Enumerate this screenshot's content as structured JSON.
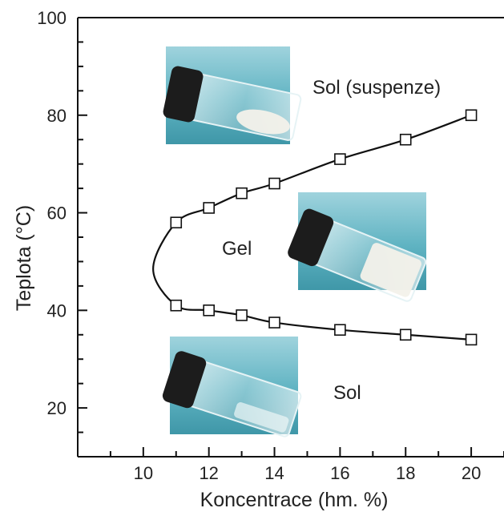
{
  "chart_data": {
    "type": "line",
    "xlabel": "Koncentrace (hm. %)",
    "ylabel": "Teplota (°C)",
    "xlim": [
      8,
      21
    ],
    "ylim": [
      10,
      100
    ],
    "x_ticks": [
      10,
      12,
      14,
      16,
      18,
      20
    ],
    "y_ticks": [
      20,
      40,
      60,
      80,
      100
    ],
    "grid": false,
    "legend": "none",
    "marker": "open-square",
    "series": [
      {
        "points": [
          {
            "x": 11,
            "y": 58
          },
          {
            "x": 12,
            "y": 61
          },
          {
            "x": 13,
            "y": 64
          },
          {
            "x": 14,
            "y": 66
          },
          {
            "x": 16,
            "y": 71
          },
          {
            "x": 18,
            "y": 75
          },
          {
            "x": 20,
            "y": 80
          }
        ]
      },
      {
        "points": [
          {
            "x": 11,
            "y": 41
          },
          {
            "x": 12,
            "y": 40
          },
          {
            "x": 13,
            "y": 39
          },
          {
            "x": 14,
            "y": 37.5
          },
          {
            "x": 16,
            "y": 36
          },
          {
            "x": 18,
            "y": 35
          },
          {
            "x": 20,
            "y": 34
          }
        ]
      }
    ],
    "curve_vertex": {
      "x": 10.3,
      "y": 48.5
    },
    "annotations": [
      "Sol (suspenze)",
      "Gel",
      "Sol"
    ]
  },
  "colors": {
    "axis": "#111111",
    "curve": "#111111",
    "marker_fill": "#ffffff",
    "photo_background": "#4aa3b3",
    "photo_background_light": "#9fd3dd",
    "vial_cap": "#1c1c1c",
    "gel_white": "#f3f1ea"
  },
  "photos": [
    {
      "name": "photo-sol-suspension",
      "content": "vial with white sediment"
    },
    {
      "name": "photo-gel",
      "content": "vial with white gel"
    },
    {
      "name": "photo-sol",
      "content": "vial with clear liquid"
    }
  ]
}
